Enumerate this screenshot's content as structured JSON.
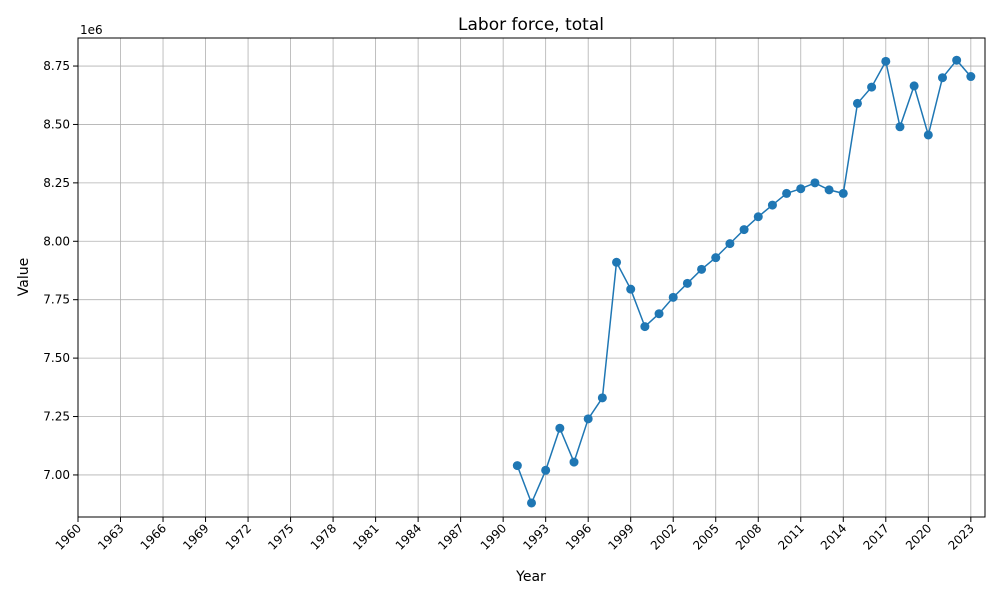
{
  "chart_data": {
    "type": "line",
    "title": "Labor force, total",
    "xlabel": "Year",
    "ylabel": "Value",
    "y_offset_label": "1e6",
    "xlim": [
      1960,
      2024
    ],
    "ylim": [
      6820000,
      8870000
    ],
    "grid": true,
    "line_color": "#1f77b4",
    "x_ticks": [
      1960,
      1963,
      1966,
      1969,
      1972,
      1975,
      1978,
      1981,
      1984,
      1987,
      1990,
      1993,
      1996,
      1999,
      2002,
      2005,
      2008,
      2011,
      2014,
      2017,
      2020,
      2023
    ],
    "y_ticks": [
      7.0,
      7.25,
      7.5,
      7.75,
      8.0,
      8.25,
      8.5,
      8.75
    ],
    "y_tick_labels": [
      "7.00",
      "7.25",
      "7.50",
      "7.75",
      "8.00",
      "8.25",
      "8.50",
      "8.75"
    ],
    "series": [
      {
        "x": [
          1991,
          1992,
          1993,
          1994,
          1995,
          1996,
          1997,
          1998,
          1999,
          2000,
          2001,
          2002,
          2003,
          2004,
          2005,
          2006,
          2007,
          2008,
          2009,
          2010,
          2011,
          2012,
          2013,
          2014,
          2015,
          2016,
          2017,
          2018,
          2019,
          2020,
          2021,
          2022,
          2023
        ],
        "y": [
          7040000,
          6880000,
          7020000,
          7200000,
          7055000,
          7240000,
          7330000,
          7910000,
          7795000,
          7635000,
          7690000,
          7760000,
          7820000,
          7880000,
          7930000,
          7990000,
          8050000,
          8105000,
          8155000,
          8205000,
          8225000,
          8250000,
          8220000,
          8205000,
          8590000,
          8660000,
          8770000,
          8490000,
          8665000,
          8455000,
          8700000,
          8775000,
          8705000
        ]
      }
    ]
  }
}
